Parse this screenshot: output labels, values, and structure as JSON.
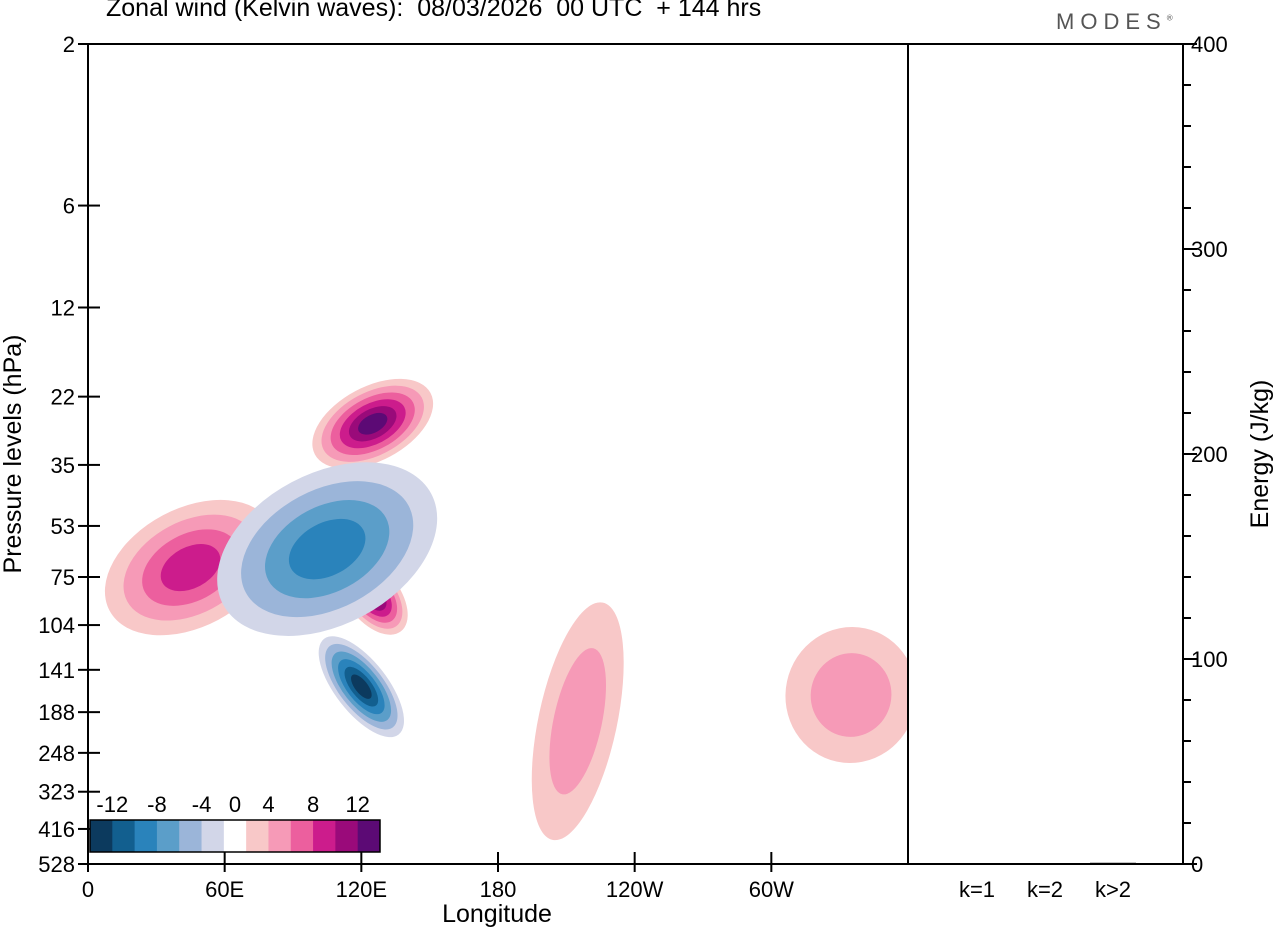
{
  "title": "Zonal wind (Kelvin waves):  08/03/2026  00 UTC  + 144 hrs",
  "brand": "MODES",
  "brand_mark": "®",
  "chart_data": [
    {
      "type": "heatmap",
      "variable": "Zonal wind (Kelvin waves) anomaly",
      "xlabel": "Longitude",
      "ylabel": "Pressure levels (hPa)",
      "x_ticks": [
        "0",
        "60E",
        "120E",
        "180",
        "120W",
        "60W"
      ],
      "x_tick_values": [
        0,
        60,
        120,
        180,
        240,
        300
      ],
      "xlim": [
        0,
        360
      ],
      "y_ticks": [
        "2",
        "6",
        "12",
        "22",
        "35",
        "53",
        "75",
        "104",
        "141",
        "188",
        "248",
        "323",
        "416",
        "528"
      ],
      "y_tick_values": [
        2,
        6,
        12,
        22,
        35,
        53,
        75,
        104,
        141,
        188,
        248,
        323,
        416,
        528
      ],
      "y_scale": "log-pressure",
      "ylim": [
        528,
        2
      ],
      "colorbar": {
        "labels": [
          "-12",
          "-8",
          "-4",
          "0",
          "4",
          "8",
          "12"
        ],
        "label_values": [
          -12,
          -8,
          -4,
          0,
          4,
          8,
          12
        ],
        "levels": [
          -16,
          -14,
          -12,
          -10,
          -8,
          -6,
          -4,
          -2,
          2,
          4,
          6,
          8,
          10,
          12,
          14,
          16
        ],
        "colors": [
          "#0c3a5e",
          "#125f8f",
          "#2a83bb",
          "#5b9ec9",
          "#9bb5d9",
          "#d2d6e8",
          "#ffffff",
          "#f8c8c8",
          "#f69ab7",
          "#ec5f9e",
          "#cc1c8c",
          "#9a0a7a",
          "#5c0a75"
        ],
        "position": "bottom-left"
      },
      "features": [
        {
          "kind": "negative",
          "max_magnitude": 16,
          "lon_range": [
            110,
            130
          ],
          "p_range": [
            100,
            250
          ],
          "desc": "strong easterly anomaly core"
        },
        {
          "kind": "positive",
          "max_magnitude": 12,
          "lon_range": [
            115,
            135
          ],
          "p_range": [
            60,
            120
          ],
          "desc": "westerly anomaly core"
        },
        {
          "kind": "positive",
          "max_magnitude": 12,
          "lon_range": [
            100,
            150
          ],
          "p_range": [
            20,
            35
          ],
          "desc": "upper westerly anomaly core"
        },
        {
          "kind": "positive",
          "max_magnitude": 8,
          "lon_range": [
            10,
            80
          ],
          "p_range": [
            45,
            110
          ],
          "desc": "westerly anomaly band"
        },
        {
          "kind": "negative",
          "max_magnitude": 8,
          "lon_range": [
            60,
            150
          ],
          "p_range": [
            35,
            110
          ],
          "desc": "easterly anomaly band"
        },
        {
          "kind": "positive",
          "max_magnitude": 4,
          "lon_range": [
            200,
            230
          ],
          "p_range": [
            80,
            500
          ],
          "desc": "weak westerly column"
        },
        {
          "kind": "positive",
          "max_magnitude": 4,
          "lon_range": [
            310,
            360
          ],
          "p_range": [
            100,
            280
          ],
          "desc": "weak westerly region"
        }
      ]
    },
    {
      "type": "bar",
      "categories": [
        "k=1",
        "k=2",
        "k>2"
      ],
      "values": [
        0.3,
        0.3,
        0.6
      ],
      "ylabel": "Energy (J/kg)",
      "y_ticks": [
        "0",
        "100",
        "200",
        "300",
        "400"
      ],
      "ylim": [
        0,
        400
      ]
    }
  ]
}
